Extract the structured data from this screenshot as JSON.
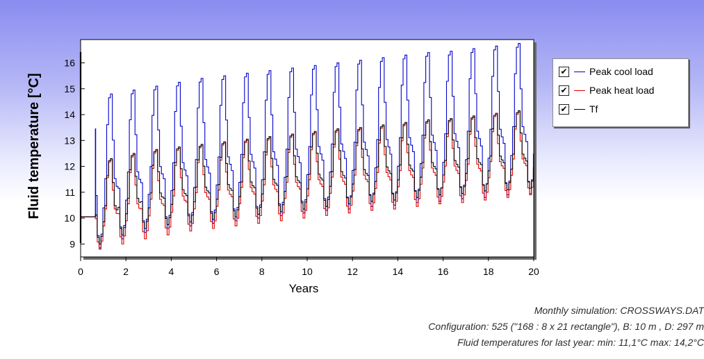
{
  "chart_data": {
    "type": "line",
    "ylabel": "Fluid temperature [°C]",
    "xlabel": "Years",
    "xlim": [
      0,
      20
    ],
    "ylim": [
      8.5,
      16.9
    ],
    "xticks": [
      0,
      2,
      4,
      6,
      8,
      10,
      12,
      14,
      16,
      18,
      20
    ],
    "yticks": [
      9,
      10,
      11,
      12,
      13,
      14,
      15,
      16
    ],
    "grid": false,
    "legend_position": "right",
    "x_resolution": "monthly",
    "series": [
      {
        "name": "Peak cool load",
        "color": "#0000cc",
        "initial_value": 10.05,
        "start_spike": 13.45,
        "yearly_peak": [
          14.8,
          14.95,
          15.1,
          15.25,
          15.4,
          15.5,
          15.6,
          15.7,
          15.8,
          15.9,
          16.0,
          16.1,
          16.2,
          16.3,
          16.4,
          16.45,
          16.55,
          16.65,
          16.75,
          16.85
        ],
        "yearly_min": [
          8.85,
          9.2,
          9.45,
          9.6,
          9.7,
          9.8,
          9.9,
          10.0,
          10.1,
          10.2,
          10.3,
          10.35,
          10.45,
          10.5,
          10.6,
          10.65,
          10.75,
          10.8,
          10.9,
          10.95
        ]
      },
      {
        "name": "Peak heat load",
        "color": "#dd0000",
        "initial_value": 10.05,
        "yearly_peak": [
          12.25,
          12.45,
          12.6,
          12.7,
          12.8,
          12.9,
          13.0,
          13.1,
          13.2,
          13.3,
          13.4,
          13.45,
          13.55,
          13.65,
          13.75,
          13.8,
          13.9,
          14.0,
          14.1,
          14.2
        ],
        "yearly_min": [
          8.8,
          9.0,
          9.2,
          9.35,
          9.5,
          9.6,
          9.7,
          9.8,
          9.9,
          10.0,
          10.1,
          10.2,
          10.3,
          10.35,
          10.45,
          10.55,
          10.6,
          10.7,
          10.8,
          10.9
        ]
      },
      {
        "name": "Tf",
        "color": "#000000",
        "initial_value": 10.05,
        "yearly_peak": [
          12.3,
          12.5,
          12.65,
          12.75,
          12.85,
          12.95,
          13.05,
          13.15,
          13.25,
          13.35,
          13.45,
          13.5,
          13.6,
          13.7,
          13.8,
          13.85,
          13.95,
          14.05,
          14.15,
          14.25
        ],
        "yearly_min": [
          9.0,
          9.35,
          9.6,
          9.75,
          9.85,
          9.95,
          10.05,
          10.15,
          10.25,
          10.35,
          10.45,
          10.55,
          10.65,
          10.7,
          10.8,
          10.9,
          10.95,
          11.05,
          11.1,
          11.15
        ]
      }
    ]
  },
  "legend": {
    "items": [
      {
        "label": "Peak cool load",
        "checked": true,
        "check_glyph": "✔",
        "color": "#0000cc"
      },
      {
        "label": "Peak heat load",
        "checked": true,
        "check_glyph": "✔",
        "color": "#dd0000"
      },
      {
        "label": "Tf",
        "checked": true,
        "check_glyph": "✔",
        "color": "#000000"
      }
    ]
  },
  "footer": {
    "line1": "Monthly simulation: CROSSWAYS.DAT",
    "line2": "Configuration: 525 (\"168 : 8 x 21 rectangle\"), B: 10 m , D: 297 m",
    "line3": "Fluid temperatures for last year: min: 11,1°C max: 14,2°C"
  },
  "colors": {
    "background_top": "#8a8cf0",
    "background_bottom": "#ffffff"
  }
}
